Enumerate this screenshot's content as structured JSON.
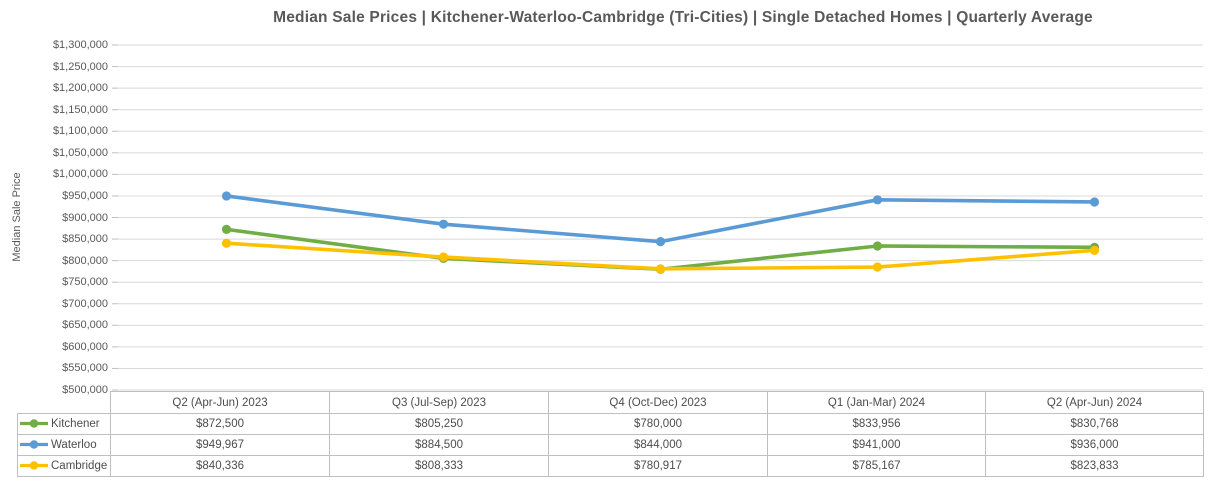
{
  "chart": {
    "title": "Median Sale Prices | Kitchener-Waterloo-Cambridge (Tri-Cities) | Single Detached Homes | Quarterly Average",
    "ylabel": "Median Sale Price"
  },
  "colors": {
    "kitchener_green": "#70AD47",
    "waterloo_blue": "#5B9BD5",
    "cambridge_yellow": "#FFC000",
    "gridline": "#D9D9D9",
    "tick_mark": "#BFBFBF",
    "table_border": "#BFBFBF",
    "text": "#595959"
  },
  "chart_data": {
    "type": "line",
    "title": "Median Sale Prices | Kitchener-Waterloo-Cambridge (Tri-Cities) | Single Detached Homes | Quarterly Average",
    "xlabel": "",
    "ylabel": "Median Sale Price",
    "ylim": [
      500000,
      1300000
    ],
    "ytick_step": 50000,
    "grid": true,
    "legend_position": "data-table-left",
    "marker": "circle",
    "categories": [
      "Q2 (Apr-Jun) 2023",
      "Q3 (Jul-Sep) 2023",
      "Q4 (Oct-Dec) 2023",
      "Q1 (Jan-Mar) 2024",
      "Q2 (Apr-Jun) 2024"
    ],
    "series": [
      {
        "name": "Kitchener",
        "color": "#70AD47",
        "values": [
          872500,
          805250,
          780000,
          833956,
          830768
        ]
      },
      {
        "name": "Waterloo",
        "color": "#5B9BD5",
        "values": [
          949967,
          884500,
          844000,
          941000,
          936000
        ]
      },
      {
        "name": "Cambridge",
        "color": "#FFC000",
        "values": [
          840336,
          808333,
          780917,
          785167,
          823833
        ]
      }
    ],
    "table_values_display": [
      [
        "$872,500",
        "$805,250",
        "$780,000",
        "$833,956",
        "$830,768"
      ],
      [
        "$949,967",
        "$884,500",
        "$844,000",
        "$941,000",
        "$936,000"
      ],
      [
        "$840,336",
        "$808,333",
        "$780,917",
        "$785,167",
        "$823,833"
      ]
    ],
    "y_ticks_display": [
      "$1,300,000",
      "$1,250,000",
      "$1,200,000",
      "$1,150,000",
      "$1,100,000",
      "$1,050,000",
      "$1,000,000",
      "$950,000",
      "$900,000",
      "$850,000",
      "$800,000",
      "$750,000",
      "$700,000",
      "$650,000",
      "$600,000",
      "$550,000",
      "$500,000"
    ]
  }
}
